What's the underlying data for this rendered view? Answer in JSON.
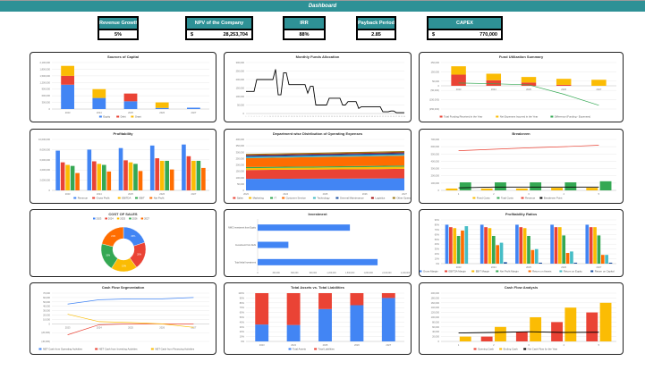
{
  "header": {
    "title": "Dashboard"
  },
  "kpis": [
    {
      "label": "Revenue Growth",
      "value": "5%"
    },
    {
      "label": "NPV of the Company",
      "currency": "$",
      "value": "28,253,704"
    },
    {
      "label": "IRR",
      "value": "88%"
    },
    {
      "label": "Payback Period",
      "value": "2.85"
    },
    {
      "label": "CAPEX",
      "currency": "$",
      "value": "770,000"
    }
  ],
  "colors": {
    "teal": "#2e9196",
    "blue": "#4285f4",
    "red": "#ea4335",
    "yellow": "#fbbc04",
    "green": "#34a853",
    "orange": "#ff6d01",
    "cyan": "#46bdc6",
    "navy": "#1a4fa0"
  },
  "chart_data": [
    {
      "id": "c1",
      "type": "bar",
      "mode": "stacked",
      "title": "Sources of Capital",
      "categories": [
        "2023",
        "2024",
        "2025",
        "2026",
        "2027"
      ],
      "ylim": [
        0,
        2100000
      ],
      "yticks": [
        0,
        300000,
        600000,
        900000,
        1200000,
        1500000,
        1800000,
        2100000
      ],
      "yticklabels": [
        "0",
        "300,000",
        "600,000",
        "900,000",
        "1,200,000",
        "1,500,000",
        "1,800,000",
        "2,100,000"
      ],
      "series": [
        {
          "name": "Equity",
          "color": "#4285f4",
          "values": [
            1100000,
            500000,
            350000,
            50000,
            60000
          ]
        },
        {
          "name": "Debt",
          "color": "#ea4335",
          "values": [
            400000,
            0,
            350000,
            0,
            0
          ]
        },
        {
          "name": "Grant",
          "color": "#fbbc04",
          "values": [
            450000,
            400000,
            0,
            250000,
            0
          ]
        }
      ]
    },
    {
      "id": "c2",
      "type": "line",
      "title": "Monthly Funds Allocation",
      "categories": [
        "1",
        "2",
        "3",
        "4",
        "5",
        "6",
        "7",
        "8",
        "9",
        "10",
        "11",
        "12",
        "13",
        "14",
        "15",
        "16",
        "17",
        "18",
        "19",
        "20",
        "21",
        "22",
        "23",
        "24",
        "25",
        "26",
        "27",
        "28",
        "29",
        "30",
        "31",
        "32",
        "33",
        "34",
        "35",
        "36",
        "37",
        "38",
        "39",
        "40",
        "41",
        "42",
        "43",
        "44",
        "45",
        "46",
        "47",
        "48",
        "49",
        "50",
        "51",
        "52",
        "53",
        "54",
        "55",
        "56",
        "57",
        "58",
        "59",
        "60"
      ],
      "ylim": [
        0,
        300000
      ],
      "yticks": [
        0,
        50000,
        100000,
        150000,
        200000,
        250000,
        300000
      ],
      "yticklabels": [
        "0",
        "50,000",
        "100,000",
        "150,000",
        "200,000",
        "250,000",
        "300,000"
      ],
      "edge": true,
      "nolegend": true,
      "lines": [
        {
          "name": "Funds Allocation",
          "color": "#000000",
          "values": [
            130000,
            130000,
            130000,
            130000,
            200000,
            200000,
            200000,
            200000,
            200000,
            200000,
            200000,
            260000,
            110000,
            110000,
            240000,
            240000,
            170000,
            170000,
            170000,
            170000,
            170000,
            170000,
            170000,
            120000,
            160000,
            160000,
            50000,
            50000,
            50000,
            50000,
            50000,
            90000,
            90000,
            90000,
            90000,
            90000,
            50000,
            50000,
            70000,
            70000,
            70000,
            70000,
            30000,
            40000,
            40000,
            40000,
            40000,
            40000,
            40000,
            40000,
            40000,
            10000,
            10000,
            10000,
            15000,
            15000,
            5000,
            5000,
            5000,
            5000
          ]
        }
      ]
    },
    {
      "id": "c3",
      "type": "bar",
      "mode": "stacked",
      "title": "Fund Utilization Summary",
      "categories": [
        "2023",
        "2024",
        "2025",
        "2026",
        "2027"
      ],
      "ylim": [
        -250000,
        250000
      ],
      "yticks": [
        -250000,
        -150000,
        -50000,
        0,
        50000,
        150000,
        250000
      ],
      "yticklabels": [
        "(250,000)",
        "(150,000)",
        "(50,000)",
        "0",
        "50,000",
        "150,000",
        "250,000"
      ],
      "series": [
        {
          "name": "Total Funding Received in the Year",
          "color": "#ea4335",
          "values": [
            120000,
            60000,
            35000,
            10000,
            0
          ]
        },
        {
          "name": "Net Expenses Incurred in the Year",
          "color": "#fbbc04",
          "values": [
            90000,
            70000,
            60000,
            65000,
            65000
          ]
        }
      ],
      "lines": [
        {
          "name": "Difference (Funding - Expenses)",
          "color": "#34a853",
          "values": [
            30000,
            22000,
            10000,
            -90000,
            -210000
          ]
        }
      ]
    },
    {
      "id": "c4",
      "type": "bar",
      "mode": "grouped",
      "title": "Profitability",
      "categories": [
        "2023",
        "2024",
        "2025",
        "2026",
        "2027"
      ],
      "ylim": [
        0,
        10000000
      ],
      "yticks": [
        0,
        2000000,
        4000000,
        6000000,
        8000000,
        10000000
      ],
      "yticklabels": [
        "0",
        "2,000,000",
        "4,000,000",
        "6,000,000",
        "8,000,000",
        "10,000,000"
      ],
      "series": [
        {
          "name": "Revenue",
          "color": "#4285f4",
          "values": [
            7800000,
            8000000,
            8300000,
            8800000,
            9000000
          ]
        },
        {
          "name": "Gross Profit",
          "color": "#ea4335",
          "values": [
            5500000,
            5700000,
            5900000,
            6300000,
            6700000
          ]
        },
        {
          "name": "EBITDA",
          "color": "#fbbc04",
          "values": [
            5000000,
            5200000,
            5500000,
            5800000,
            5800000
          ]
        },
        {
          "name": "EBIT",
          "color": "#34a853",
          "values": [
            4800000,
            5000000,
            5200000,
            5800000,
            5800000
          ]
        },
        {
          "name": "Net Profit",
          "color": "#ff6d01",
          "values": [
            3400000,
            3700000,
            3800000,
            4100000,
            4400000
          ]
        }
      ]
    },
    {
      "id": "c5",
      "type": "area",
      "title": "Department wise Distribution of Operating Expenses",
      "categories": [
        "2023",
        "2024",
        "2025",
        "2026",
        "2027"
      ],
      "ylim": [
        0,
        400000
      ],
      "yticks": [
        0,
        50000,
        100000,
        150000,
        200000,
        250000,
        300000,
        350000,
        400000
      ],
      "yticklabels": [
        "0",
        "50,000",
        "100,000",
        "150,000",
        "200,000",
        "250,000",
        "300,000",
        "350,000",
        "400,000"
      ],
      "edge": true,
      "series": [
        {
          "name": "Administration",
          "color": "#4285f4",
          "values": [
            90000,
            91000,
            92000,
            93000,
            95000
          ]
        },
        {
          "name": "Sales",
          "color": "#ea4335",
          "values": [
            70000,
            71000,
            72000,
            73000,
            74000
          ]
        },
        {
          "name": "Marketing",
          "color": "#fbbc04",
          "values": [
            15000,
            15500,
            16000,
            16500,
            17000
          ]
        },
        {
          "name": "IT",
          "color": "#34a853",
          "values": [
            8000,
            8200,
            8400,
            8600,
            8800
          ]
        },
        {
          "name": "Customer Service",
          "color": "#ff6d01",
          "values": [
            70000,
            72000,
            74000,
            76000,
            78000
          ]
        },
        {
          "name": "Technology",
          "color": "#46bdc6",
          "values": [
            9000,
            9200,
            9400,
            9600,
            9800
          ]
        },
        {
          "name": "General Maintenance",
          "color": "#1a4fa0",
          "values": [
            10000,
            10200,
            10400,
            10600,
            10800
          ]
        },
        {
          "name": "Logistics",
          "color": "#a50e0e",
          "values": [
            6000,
            6100,
            6200,
            6300,
            6400
          ]
        },
        {
          "name": "Other Operating Costs",
          "color": "#9c7a14",
          "values": [
            8000,
            8200,
            8400,
            8600,
            8800
          ]
        }
      ]
    },
    {
      "id": "c6",
      "type": "bar",
      "mode": "grouped",
      "title": "Breakeven",
      "categories": [
        "1",
        "2",
        "3",
        "4",
        "5"
      ],
      "ylim": [
        0,
        700000
      ],
      "yticks": [
        0,
        100000,
        200000,
        300000,
        400000,
        500000,
        600000,
        700000
      ],
      "yticklabels": [
        "0",
        "100,000",
        "200,000",
        "300,000",
        "400,000",
        "500,000",
        "600,000",
        "700,000"
      ],
      "series": [
        {
          "name": "Fixed Costs",
          "color": "#fbbc04",
          "values": [
            25000,
            25000,
            25000,
            35000,
            35000
          ]
        },
        {
          "name": "Total Costs",
          "color": "#34a853",
          "values": [
            110000,
            110000,
            110000,
            110000,
            125000
          ]
        }
      ],
      "lines": [
        {
          "name": "Revenue",
          "color": "#ea4335",
          "values": [
            545000,
            565000,
            585000,
            600000,
            620000
          ]
        },
        {
          "name": "Breakeven Point",
          "color": "#000000",
          "values": [
            35000,
            45000,
            45000,
            45000,
            45000
          ]
        }
      ]
    },
    {
      "id": "c7",
      "type": "donut",
      "title": "COST OF SALES",
      "series": [
        {
          "name": "2023",
          "color": "#4285f4",
          "value": 20,
          "label": "20%"
        },
        {
          "name": "2024",
          "color": "#ea4335",
          "value": 20,
          "label": "20%"
        },
        {
          "name": "2025",
          "color": "#fbbc04",
          "value": 19,
          "label": "19%"
        },
        {
          "name": "2026",
          "color": "#34a853",
          "value": 20,
          "label": "20%"
        },
        {
          "name": "2027",
          "color": "#ff6d01",
          "value": 21,
          "label": "21%"
        }
      ]
    },
    {
      "id": "c8",
      "type": "hbar",
      "title": "Investment",
      "categories": [
        "NWC Investment from Equity",
        "Investment from Debt",
        "Total Initial Investment"
      ],
      "xlim": [
        0,
        2400000
      ],
      "xticks": [
        0,
        300000,
        600000,
        900000,
        1200000,
        1500000,
        1800000,
        2100000,
        2400000
      ],
      "xticklabels": [
        "0",
        "300,000",
        "600,000",
        "900,000",
        "1,200,000",
        "1,500,000",
        "1,800,000",
        "2,100,000",
        "2,400,000"
      ],
      "color": "#4285f4",
      "values": [
        1500000,
        500000,
        1950000
      ]
    },
    {
      "id": "c9",
      "type": "bar",
      "mode": "grouped",
      "title": "Profitability Ratios",
      "categories": [
        "2023",
        "2024",
        "2025",
        "2026",
        "2027"
      ],
      "ylim": [
        0,
        90
      ],
      "yticks": [
        0,
        10,
        20,
        30,
        40,
        50,
        60,
        70,
        80,
        90
      ],
      "yticklabels": [
        "0%",
        "10%",
        "20%",
        "30%",
        "40%",
        "50%",
        "60%",
        "70%",
        "80%",
        "90%"
      ],
      "series": [
        {
          "name": "Gross Margin",
          "color": "#4285f4",
          "values": [
            80,
            80,
            80,
            80,
            80
          ]
        },
        {
          "name": "EBITDA Margin",
          "color": "#ea4335",
          "values": [
            75,
            75,
            75,
            75,
            75
          ]
        },
        {
          "name": "EBIT Margin",
          "color": "#fbbc04",
          "values": [
            73,
            73,
            73,
            75,
            75
          ]
        },
        {
          "name": "Net Profit Margin",
          "color": "#34a853",
          "values": [
            57,
            57,
            57,
            58,
            58
          ]
        },
        {
          "name": "Return on Assets",
          "color": "#ff6d01",
          "values": [
            68,
            38,
            28,
            22,
            18
          ]
        },
        {
          "name": "Return on Equity",
          "color": "#46bdc6",
          "values": [
            77,
            43,
            30,
            25,
            18
          ]
        },
        {
          "name": "Return on Capital",
          "color": "#1a4fa0",
          "values": [
            0,
            3,
            2,
            2,
            2
          ]
        }
      ]
    },
    {
      "id": "c10",
      "type": "line",
      "title": "Cash Flow Segmentation",
      "categories": [
        "2023",
        "2024",
        "2025",
        "2026",
        "2027"
      ],
      "ylim": [
        -40000,
        70000
      ],
      "yticks": [
        -40000,
        -20000,
        0,
        10000,
        20000,
        30000,
        40000,
        50000,
        60000,
        70000
      ],
      "yticklabels": [
        "(40,000)",
        "(20,000)",
        "0",
        "10,000",
        "20,000",
        "30,000",
        "40,000",
        "50,000",
        "60,000",
        "70,000"
      ],
      "lines": [
        {
          "name": "NET Cash from Operating Activities",
          "color": "#4285f4",
          "values": [
            45000,
            55000,
            57000,
            57000,
            60000
          ]
        },
        {
          "name": "NET Cash from Investing Activities",
          "color": "#ea4335",
          "values": [
            -25000,
            -2000,
            0,
            0,
            0
          ]
        },
        {
          "name": "NET Cash from Financing Activities",
          "color": "#fbbc04",
          "values": [
            22000,
            5000,
            3000,
            0,
            -8000
          ]
        }
      ]
    },
    {
      "id": "c11",
      "type": "bar",
      "mode": "stacked",
      "title": "Total Assets vs. Total Liabilities",
      "categories": [
        "2023",
        "2024",
        "2025",
        "2026",
        "2027"
      ],
      "ylim": [
        0,
        100
      ],
      "yticks": [
        0,
        10,
        20,
        30,
        40,
        50,
        60,
        70,
        80,
        90,
        100
      ],
      "yticklabels": [
        "0%",
        "10%",
        "20%",
        "30%",
        "40%",
        "50%",
        "60%",
        "70%",
        "80%",
        "90%",
        "100%"
      ],
      "series": [
        {
          "name": "Total Assets",
          "color": "#4285f4",
          "values": [
            35,
            34,
            67,
            75,
            90
          ]
        },
        {
          "name": "Total Liabilities",
          "color": "#ea4335",
          "values": [
            65,
            66,
            33,
            25,
            10
          ]
        }
      ]
    },
    {
      "id": "c12",
      "type": "bar",
      "mode": "grouped",
      "title": "Cash Flow Analysis",
      "categories": [
        "1",
        "2",
        "3",
        "4",
        "5"
      ],
      "ylim": [
        0,
        200000
      ],
      "yticks": [
        0,
        20000,
        40000,
        60000,
        80000,
        100000,
        120000,
        140000,
        160000,
        180000,
        200000
      ],
      "yticklabels": [
        "0",
        "20,000",
        "40,000",
        "60,000",
        "80,000",
        "100,000",
        "120,000",
        "140,000",
        "160,000",
        "180,000",
        "200,000"
      ],
      "series": [
        {
          "name": "Opening Cash",
          "color": "#ea4335",
          "values": [
            0,
            20000,
            40000,
            80000,
            120000
          ]
        },
        {
          "name": "Ending Cash",
          "color": "#fbbc04",
          "values": [
            20000,
            60000,
            100000,
            140000,
            160000
          ]
        }
      ],
      "lines": [
        {
          "name": "Net Cash Flow for the Year",
          "color": "#000000",
          "values": [
            35000,
            37000,
            40000,
            37000,
            38000
          ]
        }
      ]
    }
  ]
}
